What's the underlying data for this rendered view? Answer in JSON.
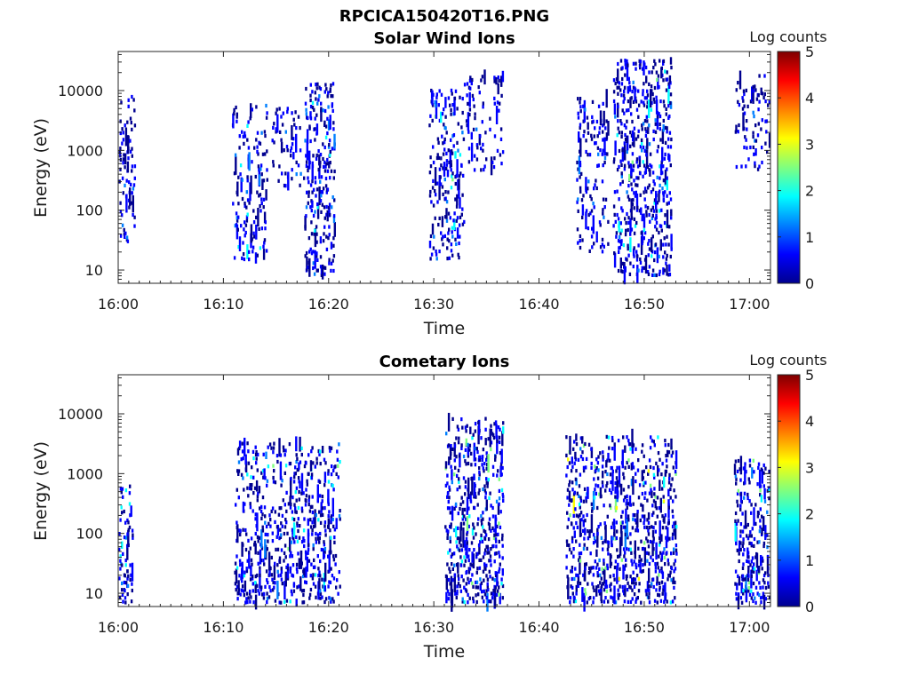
{
  "figure_title": "RPCICA150420T16.PNG",
  "chart_data": [
    {
      "type": "heatmap",
      "title": "Solar Wind Ions",
      "xlabel": "Time",
      "ylabel": "Energy (eV)",
      "x_ticks": [
        "16:00",
        "16:10",
        "16:20",
        "16:30",
        "16:40",
        "16:50",
        "17:00"
      ],
      "x_range_minutes": [
        0,
        62
      ],
      "y_ticks": [
        "10",
        "100",
        "1000",
        "10000"
      ],
      "y_scale": "log",
      "ylim": [
        6,
        45000
      ],
      "colorbar_label": "Log counts",
      "colorbar_ticks": [
        "0",
        "1",
        "2",
        "3",
        "4",
        "5"
      ],
      "colorbar_range": [
        0,
        5
      ],
      "colormap": [
        "#00008f",
        "#0000ff",
        "#007fff",
        "#00ffff",
        "#7fff7f",
        "#ffff00",
        "#ff7f00",
        "#ff0000",
        "#7f0000"
      ],
      "activity_bursts": [
        {
          "t0": 0.0,
          "t1": 1.5,
          "e_low": 30,
          "e_high": 9000,
          "density": 0.55,
          "level": 0.1
        },
        {
          "t0": 10.8,
          "t1": 14.1,
          "e_low": 15,
          "e_high": 6000,
          "density": 0.45,
          "level": 0.25
        },
        {
          "t0": 14.5,
          "t1": 17.6,
          "e_low": 250,
          "e_high": 5500,
          "density": 0.35,
          "level": 0.1
        },
        {
          "t0": 17.6,
          "t1": 20.5,
          "e_low": 8,
          "e_high": 14000,
          "density": 0.6,
          "level": 0.2
        },
        {
          "t0": 29.5,
          "t1": 32.8,
          "e_low": 15,
          "e_high": 11000,
          "density": 0.5,
          "level": 0.3
        },
        {
          "t0": 32.8,
          "t1": 36.5,
          "e_low": 450,
          "e_high": 19000,
          "density": 0.3,
          "level": 0.1
        },
        {
          "t0": 43.5,
          "t1": 46.5,
          "e_low": 20,
          "e_high": 8000,
          "density": 0.45,
          "level": 0.1
        },
        {
          "t0": 47.0,
          "t1": 52.5,
          "e_low": 8,
          "e_high": 35000,
          "density": 0.6,
          "level": 0.3
        },
        {
          "t0": 58.5,
          "t1": 62.0,
          "e_low": 450,
          "e_high": 20000,
          "density": 0.45,
          "level": 0.1
        }
      ]
    },
    {
      "type": "heatmap",
      "title": "Cometary Ions",
      "xlabel": "Time",
      "ylabel": "Energy (eV)",
      "x_ticks": [
        "16:00",
        "16:10",
        "16:20",
        "16:30",
        "16:40",
        "16:50",
        "17:00"
      ],
      "x_range_minutes": [
        0,
        62
      ],
      "y_ticks": [
        "10",
        "100",
        "1000",
        "10000"
      ],
      "y_scale": "log",
      "ylim": [
        6,
        45000
      ],
      "colorbar_label": "Log counts",
      "colorbar_ticks": [
        "0",
        "1",
        "2",
        "3",
        "4",
        "5"
      ],
      "colorbar_range": [
        0,
        5
      ],
      "colormap": [
        "#00008f",
        "#0000ff",
        "#007fff",
        "#00ffff",
        "#7fff7f",
        "#ffff00",
        "#ff7f00",
        "#ff0000",
        "#7f0000"
      ],
      "activity_bursts": [
        {
          "t0": 0.0,
          "t1": 1.3,
          "e_low": 6,
          "e_high": 700,
          "density": 0.55,
          "level": 0.35
        },
        {
          "t0": 11.0,
          "t1": 21.0,
          "e_low": 6,
          "e_high": 3500,
          "density": 0.4,
          "level": 0.3
        },
        {
          "t0": 31.0,
          "t1": 36.5,
          "e_low": 6,
          "e_high": 9000,
          "density": 0.5,
          "level": 0.4
        },
        {
          "t0": 42.5,
          "t1": 53.0,
          "e_low": 6,
          "e_high": 4500,
          "density": 0.45,
          "level": 0.45
        },
        {
          "t0": 58.5,
          "t1": 62.0,
          "e_low": 6,
          "e_high": 1800,
          "density": 0.5,
          "level": 0.4
        }
      ]
    }
  ]
}
